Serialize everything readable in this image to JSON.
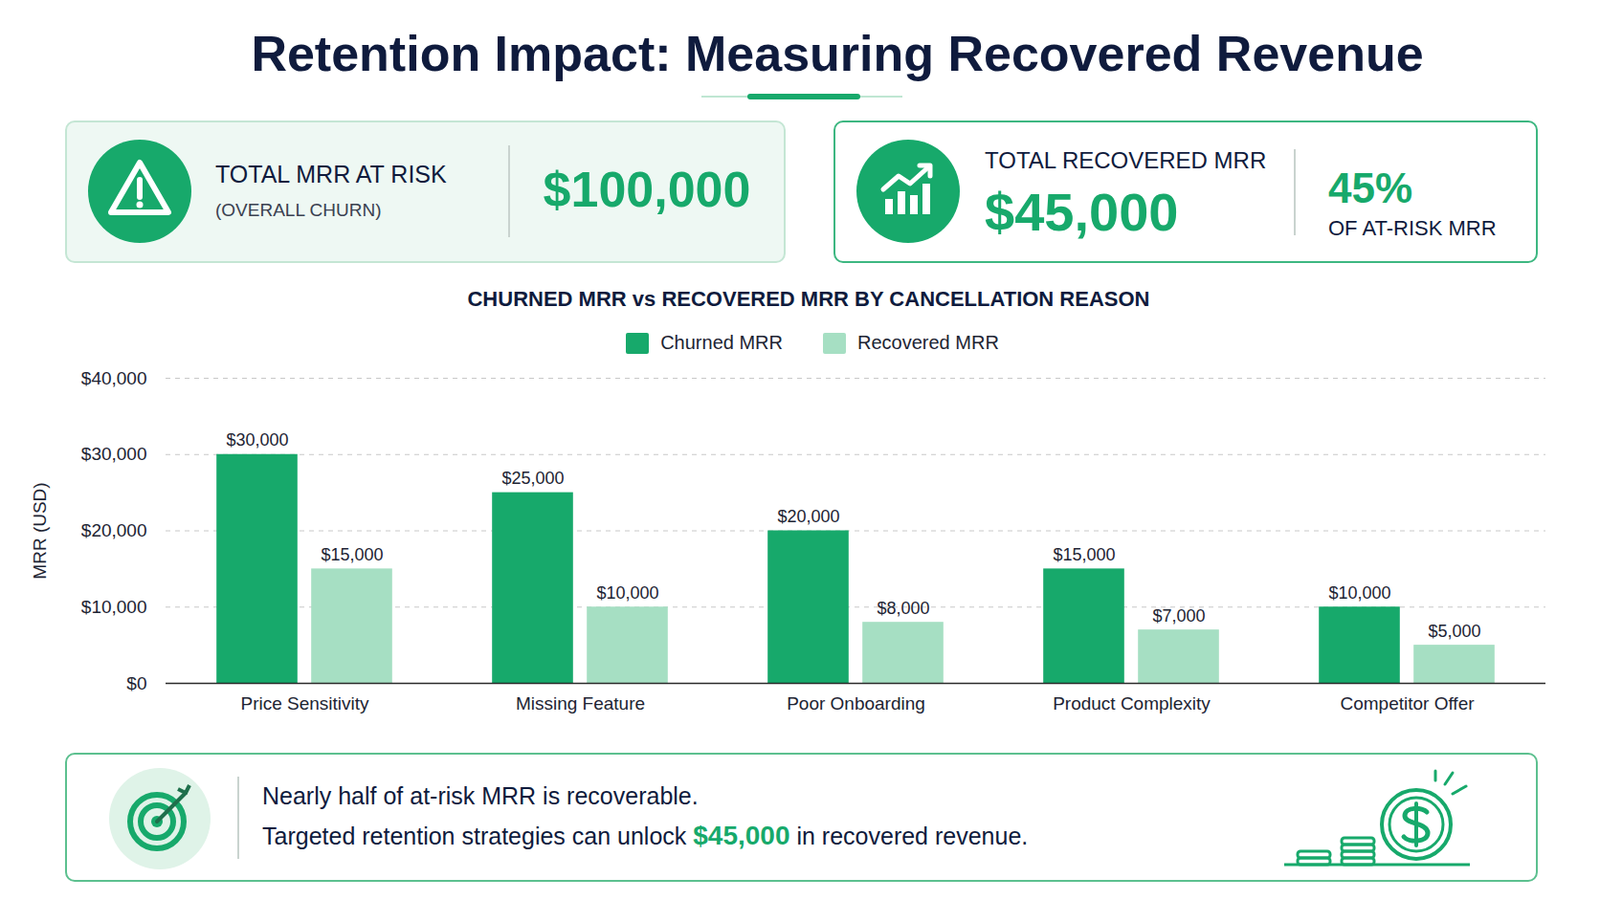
{
  "title": "Retention Impact: Measuring Recovered Revenue",
  "kpis": [
    {
      "label": "TOTAL MRR AT RISK",
      "sublabel": "(OVERALL CHURN)",
      "value": "$100,000"
    },
    {
      "label": "TOTAL RECOVERED MRR",
      "value": "$45,000",
      "share": "45%",
      "share_note": "OF AT-RISK MRR"
    }
  ],
  "chart_data": {
    "type": "bar",
    "title": "CHURNED MRR vs RECOVERED MRR BY CANCELLATION REASON",
    "categories": [
      "Price Sensitivity",
      "Missing Feature",
      "Poor Onboarding",
      "Product Complexity",
      "Competitor Offer"
    ],
    "series": [
      {
        "name": "Churned MRR",
        "color": "#17a96b",
        "values": [
          30000,
          25000,
          20000,
          15000,
          10000
        ],
        "value_labels": [
          "$30,000",
          "$25,000",
          "$20,000",
          "$15,000",
          "$10,000"
        ]
      },
      {
        "name": "Recovered MRR",
        "color": "#a6dfc3",
        "values": [
          15000,
          10000,
          8000,
          7000,
          5000
        ],
        "value_labels": [
          "$15,000",
          "$10,000",
          "$8,000",
          "$7,000",
          "$5,000"
        ]
      }
    ],
    "ylabel": "MRR (USD)",
    "ylim": [
      0,
      40000
    ],
    "yticks": [
      {
        "value": 0,
        "label": "$0"
      },
      {
        "value": 10000,
        "label": "$10,000"
      },
      {
        "value": 20000,
        "label": "$20,000"
      },
      {
        "value": 30000,
        "label": "$30,000"
      },
      {
        "value": 40000,
        "label": "$40,000"
      }
    ],
    "grid": true,
    "legend": "top",
    "data_labels": true
  },
  "callout": {
    "lines": [
      [
        {
          "text": "Nearly half of at-risk MRR is recoverable."
        }
      ],
      [
        {
          "text": "Targeted retention strategies can unlock "
        },
        {
          "text": "$45,000",
          "highlight": true
        },
        {
          "text": " in recovered revenue."
        }
      ]
    ]
  }
}
